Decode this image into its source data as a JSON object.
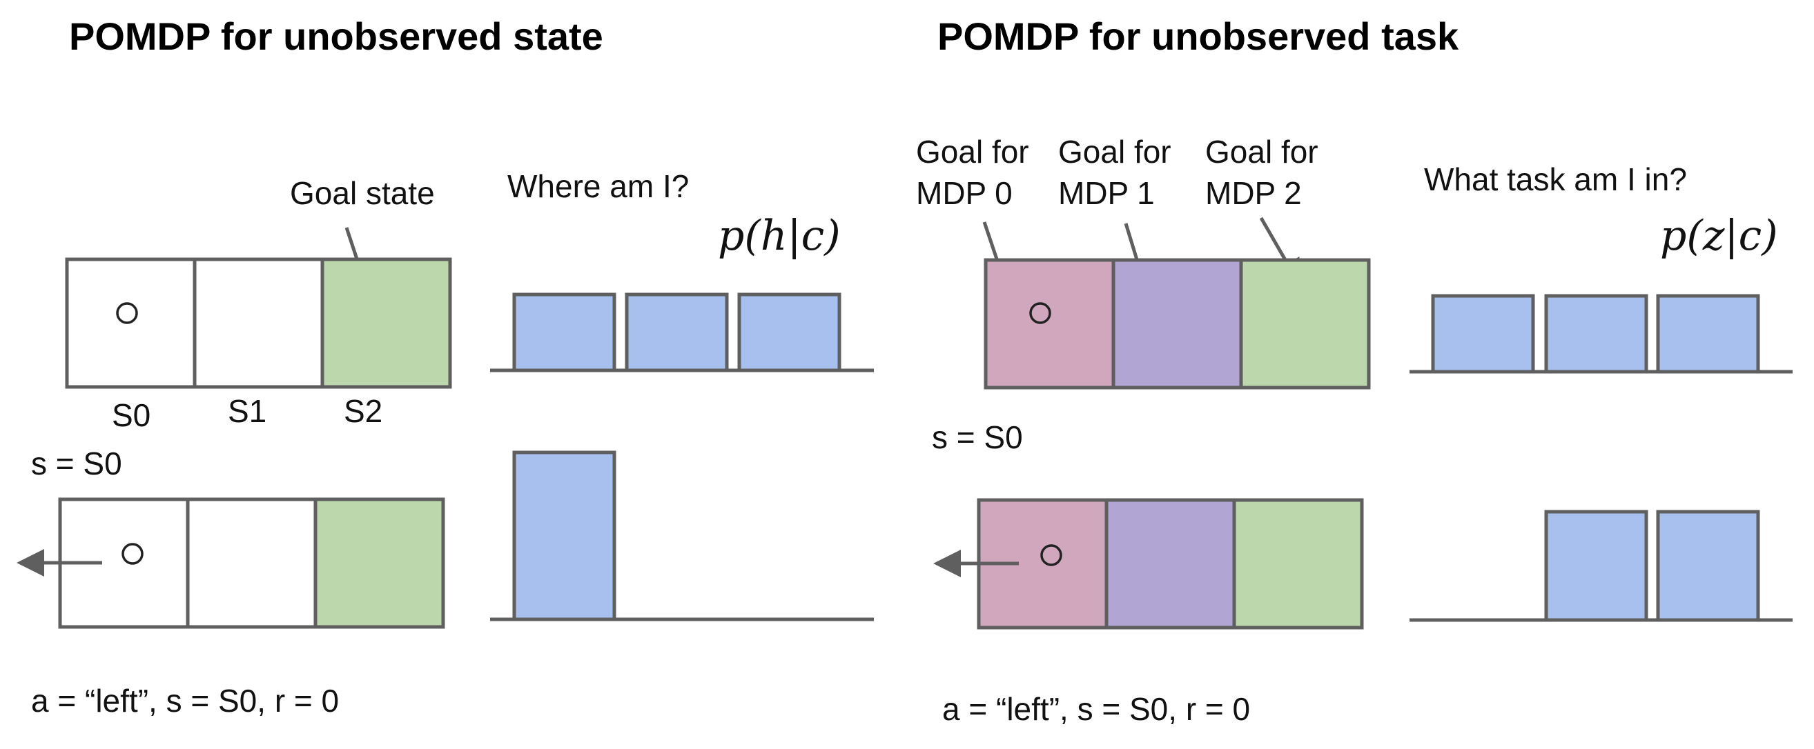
{
  "left_panel": {
    "title": "POMDP for unobserved state",
    "goal_label": "Goal state",
    "question": "Where am I?",
    "belief_expr": "p(h|c)",
    "state_labels": [
      "S0",
      "S1",
      "S2"
    ],
    "state_obs": "s = S0",
    "transition": "a = “left”, s = S0, r = 0",
    "colors": {
      "empty": "#ffffff",
      "goal": "#bdd7ac",
      "bar": "#a8c0ee"
    },
    "belief_before": [
      1,
      1,
      1
    ],
    "belief_after": [
      1,
      0,
      0
    ]
  },
  "right_panel": {
    "title": "POMDP for unobserved task",
    "goal_labels": [
      [
        "Goal for",
        "MDP 0"
      ],
      [
        "Goal for",
        "MDP 1"
      ],
      [
        "Goal for",
        "MDP 2"
      ]
    ],
    "question": "What task am I in?",
    "belief_expr": "p(z|c)",
    "state_obs": "s = S0",
    "transition": "a = “left”, s = S0, r = 0",
    "colors": {
      "mdp0": "#d0a7bd",
      "mdp1": "#b1a5d3",
      "mdp2": "#bdd7ac",
      "bar": "#a8c0ee"
    },
    "belief_before": [
      1,
      1,
      1
    ],
    "belief_after": [
      0,
      1,
      1
    ]
  }
}
